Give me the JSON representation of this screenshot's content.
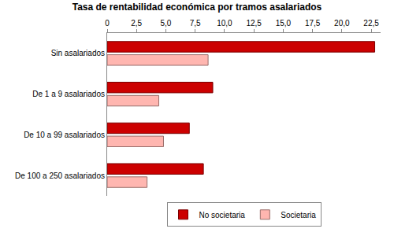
{
  "chart_data": {
    "type": "bar",
    "title": "Tasa de rentabilidad económica por tramos asalariados",
    "orientation": "horizontal",
    "categories": [
      "Sin asalariados",
      "De 1 a 9 asalariados",
      "De 10 a 99 asalariados",
      "De 100 a 250 asalariados"
    ],
    "series": [
      {
        "name": "No societaria",
        "color": "#cc0000",
        "values": [
          22.8,
          9.0,
          7.0,
          8.2
        ]
      },
      {
        "name": "Societaria",
        "color": "#ffb6b0",
        "values": [
          8.6,
          4.4,
          4.8,
          3.4
        ]
      }
    ],
    "xlim": [
      0,
      23.3
    ],
    "xticks": [
      0,
      {
        "value": 2.5,
        "label": "2,5"
      },
      {
        "value": 5,
        "label": "5,0"
      },
      {
        "value": 7.5,
        "label": "7,5"
      },
      {
        "value": 10,
        "label": "10,0"
      },
      {
        "value": 12.5,
        "label": "12,5"
      },
      {
        "value": 15,
        "label": "15,0"
      },
      {
        "value": 17.5,
        "label": "17,5"
      },
      {
        "value": 20,
        "label": "20,0"
      },
      {
        "value": 22.5,
        "label": "22,5"
      }
    ],
    "grid": false,
    "legend": "bottom"
  }
}
